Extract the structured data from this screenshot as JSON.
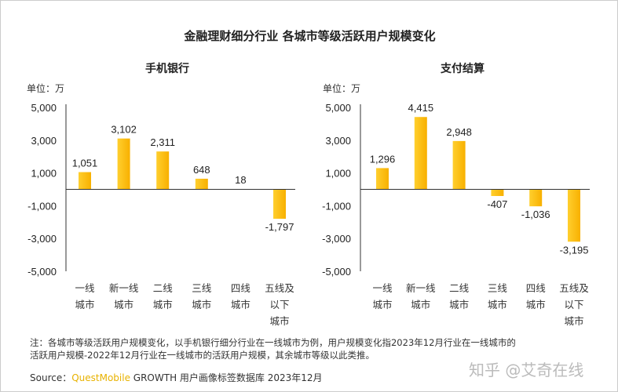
{
  "title": "金融理财细分行业 各城市等级活跃用户规模变化",
  "unit": "单位：万",
  "bar_color": "#FDBD13",
  "chart_data": [
    {
      "type": "bar",
      "title": "手机银行",
      "categories": [
        [
          "一线",
          "城市"
        ],
        [
          "新一线",
          "城市"
        ],
        [
          "二线",
          "城市"
        ],
        [
          "三线",
          "城市"
        ],
        [
          "四线",
          "城市"
        ],
        [
          "五线及",
          "以下",
          "城市"
        ]
      ],
      "values": [
        1051,
        3102,
        2311,
        648,
        18,
        -1797
      ],
      "data_labels": [
        "1,051",
        "3,102",
        "2,311",
        "648",
        "18",
        "-1,797"
      ],
      "ylim": [
        -5000,
        5000
      ],
      "yticks": [
        "5,000",
        "3,000",
        "1,000",
        "-1,000",
        "-3,000",
        "-5,000"
      ],
      "ytick_values": [
        5000,
        3000,
        1000,
        -1000,
        -3000,
        -5000
      ],
      "grid": false
    },
    {
      "type": "bar",
      "title": "支付结算",
      "categories": [
        [
          "一线",
          "城市"
        ],
        [
          "新一线",
          "城市"
        ],
        [
          "二线",
          "城市"
        ],
        [
          "三线",
          "城市"
        ],
        [
          "四线",
          "城市"
        ],
        [
          "五线及",
          "以下",
          "城市"
        ]
      ],
      "values": [
        1296,
        4415,
        2948,
        -407,
        -1036,
        -3195
      ],
      "data_labels": [
        "1,296",
        "4,415",
        "2,948",
        "-407",
        "-1,036",
        "-3,195"
      ],
      "ylim": [
        -5000,
        5000
      ],
      "yticks": [
        "5,000",
        "3,000",
        "1,000",
        "-1,000",
        "-3,000",
        "-5,000"
      ],
      "ytick_values": [
        5000,
        3000,
        1000,
        -1000,
        -3000,
        -5000
      ],
      "grid": false
    }
  ],
  "note_line1": "注：各城市等级活跃用户规模变化，以手机银行细分行业在一线城市为例，用户规模变化指2023年12月行业在一线城市的",
  "note_line2": "活跃用户规模-2022年12月行业在一线城市的活跃用户规模，其余城市等级以此类推。",
  "source_prefix": "Source：",
  "source_brand": "QuestMobile",
  "source_rest": " GROWTH 用户画像标签数据库 2023年12月",
  "watermark": "知乎 @艾奇在线"
}
